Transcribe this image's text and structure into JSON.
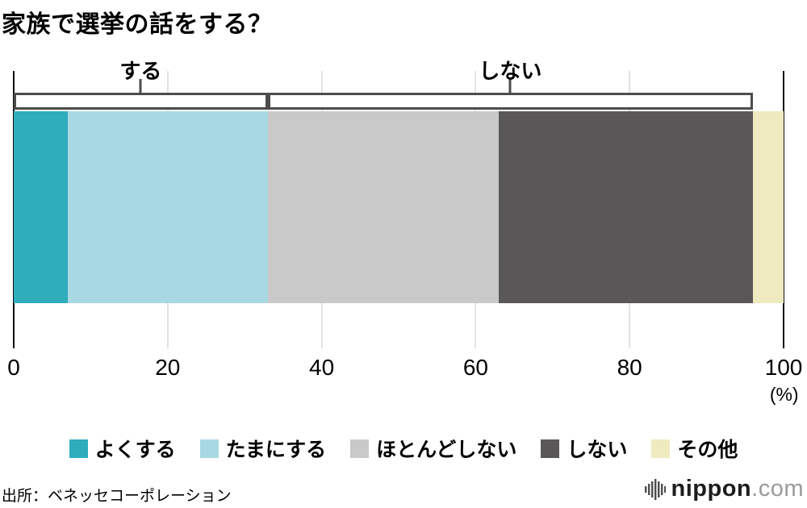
{
  "page": {
    "title": "家族で選挙の話をする？",
    "source": "出所：ベネッセコーポレーション",
    "logo": {
      "name": "nippon",
      "tld": ".com"
    }
  },
  "chart_data": {
    "type": "bar",
    "variant": "horizontal-stacked-100",
    "title": "家族で選挙の話をする？",
    "unit": "%",
    "categories": [
      "よくする",
      "たまにする",
      "ほとんどしない",
      "しない",
      "その他"
    ],
    "values": [
      7,
      26,
      30,
      33,
      4
    ],
    "colors": [
      "#2fadbc",
      "#a8d8e1",
      "#c9c9c9",
      "#595757",
      "#efeabf"
    ],
    "xlim": [
      0,
      100
    ],
    "x_ticks": [
      0,
      20,
      40,
      60,
      80,
      100
    ],
    "x_unit_label": "(%)",
    "grid": true,
    "groups": [
      {
        "label": "する",
        "start": 0,
        "end": 33
      },
      {
        "label": "しない",
        "start": 33,
        "end": 96
      }
    ],
    "legend": [
      {
        "label": "よくする",
        "color": "#2fadbc"
      },
      {
        "label": "たまにする",
        "color": "#a8d8e1"
      },
      {
        "label": "ほとんどしない",
        "color": "#c9c9c9"
      },
      {
        "label": "しない",
        "color": "#595757"
      },
      {
        "label": "その他",
        "color": "#efeabf"
      }
    ],
    "legend_position": "bottom"
  }
}
